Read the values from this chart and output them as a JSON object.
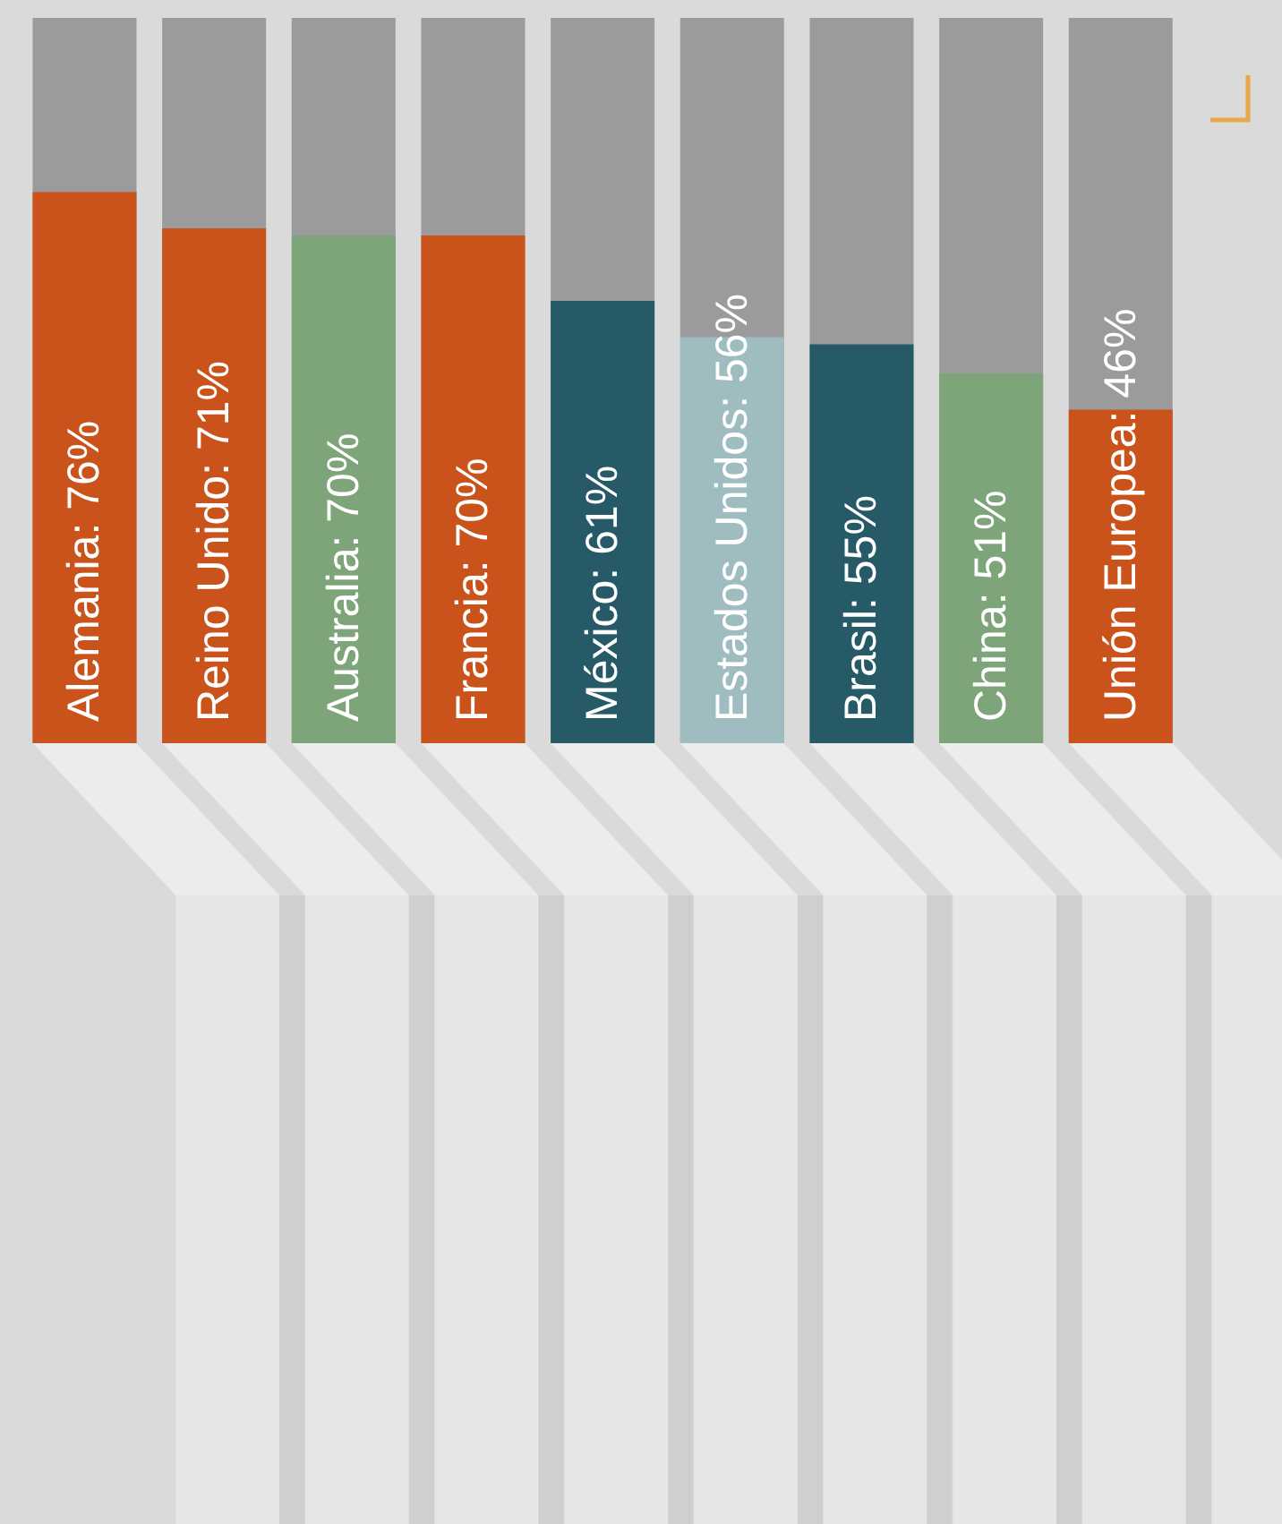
{
  "chart_data": {
    "type": "bar",
    "categories": [
      null,
      null,
      null,
      null,
      null,
      null,
      null,
      null,
      null
    ],
    "values": [
      76,
      71,
      70,
      70,
      61,
      56,
      55,
      51,
      46
    ],
    "colors": [
      "#c9531b",
      "#c9531b",
      "#7ea479",
      "#c9531b",
      "#255a66",
      "#9fbcc0",
      "#255a66",
      "#7ea479",
      "#c9531b"
    ],
    "value_labels": [
      "Alemania: 76%",
      "Reino Unido: 71%",
      "Australia: 70%",
      "Francia: 70%",
      "México: 61%",
      "Estados Unidos: 56%",
      "Brasil: 55%",
      "China: 51%",
      "Unión Europea: 46%"
    ],
    "ylim": [
      0,
      100
    ],
    "tick_labels": false
  }
}
